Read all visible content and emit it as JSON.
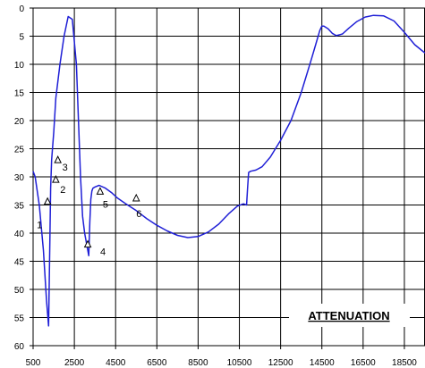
{
  "chart_data": {
    "type": "line",
    "title": "ATTENUATION",
    "xlabel": "",
    "ylabel": "",
    "xlim": [
      500,
      19500
    ],
    "ylim": [
      0,
      60
    ],
    "y_inverted": true,
    "grid": true,
    "x_ticks": [
      500,
      2500,
      4500,
      6500,
      8500,
      10500,
      12500,
      14500,
      16500,
      18500
    ],
    "x_tick_labels": [
      "500",
      "2500",
      "4500",
      "6500",
      "8500",
      "10500",
      "12500",
      "14500",
      "16500",
      "18500"
    ],
    "y_ticks": [
      0,
      5,
      10,
      15,
      20,
      25,
      30,
      35,
      40,
      45,
      50,
      55,
      60
    ],
    "y_tick_labels": [
      "0",
      "5",
      "10",
      "15",
      "20",
      "25",
      "30",
      "35",
      "40",
      "45",
      "50",
      "55",
      "60"
    ],
    "colors": {
      "line": "#1f1fd6",
      "grid": "#000000",
      "axis": "#000000",
      "marker": "#000000"
    },
    "series": [
      {
        "x": [
          500,
          600,
          800,
          1000,
          1150,
          1250,
          1300,
          1350,
          1400,
          1500,
          1600,
          1800,
          2000,
          2200,
          2400,
          2600,
          2700,
          2800,
          2900,
          3000,
          3100,
          3200,
          3250,
          3300,
          3350,
          3400,
          3500,
          3700,
          4000,
          4300,
          4600,
          5000,
          5500,
          6000,
          6500,
          7000,
          7500,
          8000,
          8500,
          9000,
          9500,
          10000,
          10400,
          10700,
          10850,
          10900,
          10950,
          11050,
          11300,
          11600,
          12000,
          12500,
          13000,
          13500,
          14000,
          14200,
          14400,
          14500,
          14600,
          14800,
          15000,
          15200,
          15500,
          15800,
          16200,
          16600,
          17000,
          17500,
          18000,
          18500,
          19000,
          19500
        ],
        "y": [
          29,
          30,
          35,
          43,
          52,
          56.5,
          45,
          32,
          27,
          22,
          16,
          10,
          5,
          1.5,
          2,
          10,
          20,
          30,
          37,
          40,
          42,
          44,
          38,
          34,
          32.5,
          32,
          31.8,
          31.5,
          32,
          32.8,
          33.8,
          34.8,
          36,
          37.4,
          38.6,
          39.6,
          40.4,
          40.8,
          40.6,
          39.8,
          38.4,
          36.5,
          35.2,
          34.8,
          35,
          32,
          29.2,
          29,
          28.8,
          28.2,
          26.5,
          23.5,
          20,
          15,
          9,
          6.5,
          4,
          3.2,
          3.2,
          3.7,
          4.5,
          4.9,
          4.6,
          3.6,
          2.4,
          1.6,
          1.3,
          1.4,
          2.3,
          4.3,
          6.5,
          8
        ]
      }
    ],
    "markers": [
      {
        "label": "1",
        "x": 1200,
        "y": 34.4
      },
      {
        "label": "2",
        "x": 1600,
        "y": 30.5
      },
      {
        "label": "3",
        "x": 1700,
        "y": 27
      },
      {
        "label": "4",
        "x": 3150,
        "y": 42
      },
      {
        "label": "5",
        "x": 3750,
        "y": 32.6
      },
      {
        "label": "6",
        "x": 5500,
        "y": 33.8
      }
    ]
  }
}
